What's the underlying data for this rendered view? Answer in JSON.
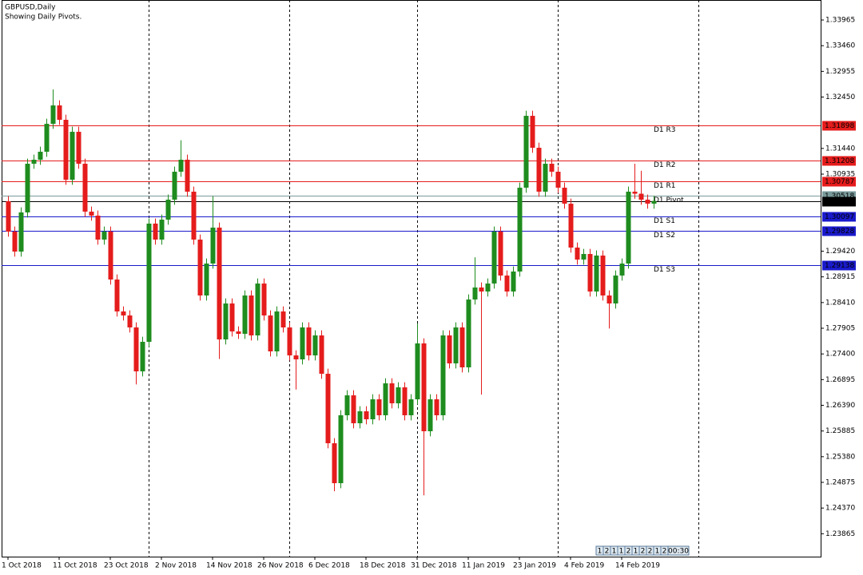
{
  "chart_data": {
    "type": "candlestick",
    "title": "GBPUSD,Daily",
    "subtitle": "Showing Daily Pivots.",
    "up_color": "#1e8c1e",
    "down_color": "#e51c1c",
    "ylim": [
      1.23415,
      1.34358
    ],
    "xlim": [
      -1,
      127.125
    ],
    "yticks": [
      1.33965,
      {
        "value": 1.3346,
        "label": "1.33460"
      },
      1.32955,
      {
        "value": 1.3245,
        "label": "1.32450"
      },
      {
        "value": 1.3144,
        "label": "1.31440"
      },
      1.30935,
      {
        "value": 1.2942,
        "label": "1.29420"
      },
      1.28915,
      {
        "value": 1.2841,
        "label": "1.28410"
      },
      1.27905,
      {
        "value": 1.274,
        "label": "1.27400"
      },
      1.26895,
      {
        "value": 1.2639,
        "label": "1.26390"
      },
      1.25885,
      {
        "value": 1.2538,
        "label": "1.25380"
      },
      1.24875,
      {
        "value": 1.2437,
        "label": "1.24370"
      },
      1.23865
    ],
    "xticks": [
      {
        "value": 0,
        "label": "1 Oct 2018"
      },
      {
        "value": 8,
        "label": "11 Oct 2018"
      },
      {
        "value": 16,
        "label": "23 Oct 2018"
      },
      {
        "value": 24,
        "label": "2 Nov 2018"
      },
      {
        "value": 32,
        "label": "14 Nov 2018"
      },
      {
        "value": 40,
        "label": "26 Nov 2018"
      },
      {
        "value": 48,
        "label": "6 Dec 2018"
      },
      {
        "value": 56,
        "label": "18 Dec 2018"
      },
      {
        "value": 64,
        "label": "31 Dec 2018"
      },
      {
        "value": 72,
        "label": "11 Jan 2019"
      },
      {
        "value": 80,
        "label": "23 Jan 2019"
      },
      {
        "value": 88,
        "label": "4 Feb 2019"
      },
      {
        "value": 96,
        "label": "14 Feb 2019"
      }
    ],
    "period_separators": [
      22,
      44,
      64,
      86,
      108
    ],
    "levels": [
      {
        "name": "D1 R3",
        "value": 1.31898,
        "color": "#e51c1c"
      },
      {
        "name": "D1 R2",
        "value": 1.31208,
        "color": "#e51c1c"
      },
      {
        "name": "D1 R1",
        "value": 1.30787,
        "color": "#e51c1c"
      },
      {
        "name": "D1 Pivot",
        "value": 1.30518,
        "color": "#7a9a9a"
      },
      {
        "name": "D1 S1",
        "value": 1.30097,
        "color": "#1a1acc"
      },
      {
        "name": "D1 S2",
        "value": 1.29828,
        "color": "#1a1acc"
      },
      {
        "name": "D1 S3",
        "value": 1.29138,
        "color": "#1a1acc"
      }
    ],
    "current_price": 1.30408,
    "timer": [
      "1",
      "2",
      "1",
      "1",
      "2",
      "1",
      "2",
      "2",
      "1",
      "2",
      "00:30"
    ],
    "ohlc": [
      [
        1.30402,
        1.30502,
        1.29705,
        1.29805
      ],
      [
        1.29805,
        1.29905,
        1.29312,
        1.29412
      ],
      [
        1.29412,
        1.30282,
        1.29312,
        1.30182
      ],
      [
        1.30182,
        1.31239,
        1.30082,
        1.31139
      ],
      [
        1.31139,
        1.31318,
        1.31039,
        1.31218
      ],
      [
        1.31218,
        1.31475,
        1.31118,
        1.31375
      ],
      [
        1.31375,
        1.32024,
        1.31275,
        1.31924
      ],
      [
        1.31924,
        1.326,
        1.31824,
        1.32286
      ],
      [
        1.32286,
        1.32386,
        1.31903,
        1.32003
      ],
      [
        1.32003,
        1.32103,
        1.30725,
        1.30825
      ],
      [
        1.30825,
        1.31867,
        1.30725,
        1.31767
      ],
      [
        1.31767,
        1.31867,
        1.31039,
        1.31139
      ],
      [
        1.31139,
        1.31239,
        1.30097,
        1.30197
      ],
      [
        1.30197,
        1.30297,
        1.30019,
        1.30119
      ],
      [
        1.30119,
        1.30219,
        1.29548,
        1.29648
      ],
      [
        1.29648,
        1.29905,
        1.29548,
        1.29805
      ],
      [
        1.29805,
        1.29905,
        1.28763,
        1.28863
      ],
      [
        1.28863,
        1.28963,
        1.28135,
        1.28235
      ],
      [
        1.28235,
        1.28335,
        1.28056,
        1.28156
      ],
      [
        1.28156,
        1.28256,
        1.27821,
        1.27921
      ],
      [
        1.27921,
        1.28021,
        1.268,
        1.27057
      ],
      [
        1.27057,
        1.27738,
        1.26957,
        1.27638
      ],
      [
        1.27638,
        1.30062,
        1.27538,
        1.29962
      ],
      [
        1.29962,
        1.30062,
        1.29548,
        1.29648
      ],
      [
        1.29648,
        1.3014,
        1.29548,
        1.3004
      ],
      [
        1.3004,
        1.30533,
        1.2994,
        1.30433
      ],
      [
        1.30433,
        1.31082,
        1.30333,
        1.30982
      ],
      [
        1.30982,
        1.316,
        1.30882,
        1.31218
      ],
      [
        1.31218,
        1.31318,
        1.3049,
        1.3059
      ],
      [
        1.3059,
        1.3069,
        1.29548,
        1.29648
      ],
      [
        1.29648,
        1.29748,
        1.28449,
        1.28549
      ],
      [
        1.28549,
        1.29277,
        1.28449,
        1.29177
      ],
      [
        1.29177,
        1.305,
        1.29077,
        1.29883
      ],
      [
        1.29883,
        1.29983,
        1.273,
        1.27685
      ],
      [
        1.27685,
        1.28492,
        1.27585,
        1.28392
      ],
      [
        1.28392,
        1.28492,
        1.27742,
        1.27842
      ],
      [
        1.27842,
        1.27942,
        1.27695,
        1.27795
      ],
      [
        1.27795,
        1.28649,
        1.27695,
        1.28549
      ],
      [
        1.28549,
        1.28649,
        1.27664,
        1.27764
      ],
      [
        1.27764,
        1.28884,
        1.27664,
        1.28784
      ],
      [
        1.28784,
        1.28884,
        1.28056,
        1.28156
      ],
      [
        1.28156,
        1.28256,
        1.2735,
        1.2745
      ],
      [
        1.2745,
        1.28335,
        1.2735,
        1.28235
      ],
      [
        1.28235,
        1.28335,
        1.27821,
        1.27921
      ],
      [
        1.27921,
        1.28021,
        1.27271,
        1.27371
      ],
      [
        1.27371,
        1.27471,
        1.267,
        1.27293
      ],
      [
        1.27293,
        1.28021,
        1.27193,
        1.27921
      ],
      [
        1.27921,
        1.28021,
        1.27271,
        1.27371
      ],
      [
        1.27371,
        1.27864,
        1.27271,
        1.27764
      ],
      [
        1.27764,
        1.27864,
        1.2691,
        1.2701
      ],
      [
        1.2701,
        1.2711,
        1.25544,
        1.25644
      ],
      [
        1.25644,
        1.25744,
        1.247,
        1.24859
      ],
      [
        1.24859,
        1.26294,
        1.24759,
        1.26194
      ],
      [
        1.26194,
        1.26686,
        1.26094,
        1.26586
      ],
      [
        1.26586,
        1.26686,
        1.25937,
        1.26037
      ],
      [
        1.26037,
        1.26372,
        1.25937,
        1.26272
      ],
      [
        1.26272,
        1.26372,
        1.26015,
        1.26115
      ],
      [
        1.26115,
        1.26608,
        1.26015,
        1.26508
      ],
      [
        1.26508,
        1.26608,
        1.26094,
        1.26194
      ],
      [
        1.26194,
        1.26922,
        1.26094,
        1.26822
      ],
      [
        1.26822,
        1.26922,
        1.26329,
        1.26429
      ],
      [
        1.26429,
        1.26843,
        1.26329,
        1.26743
      ],
      [
        1.26743,
        1.26843,
        1.26094,
        1.26194
      ],
      [
        1.26194,
        1.26608,
        1.26094,
        1.26508
      ],
      [
        1.26508,
        1.28,
        1.26408,
        1.27607
      ],
      [
        1.27607,
        1.27707,
        1.2462,
        1.2588
      ],
      [
        1.2588,
        1.26608,
        1.2578,
        1.26508
      ],
      [
        1.26508,
        1.26608,
        1.26094,
        1.26194
      ],
      [
        1.26194,
        1.27864,
        1.26094,
        1.27764
      ],
      [
        1.27764,
        1.27864,
        1.27114,
        1.27214
      ],
      [
        1.27214,
        1.28021,
        1.27114,
        1.27921
      ],
      [
        1.27921,
        1.28021,
        1.27036,
        1.27136
      ],
      [
        1.27136,
        1.2857,
        1.27036,
        1.2847
      ],
      [
        1.2847,
        1.293,
        1.2837,
        1.28706
      ],
      [
        1.28706,
        1.28806,
        1.266,
        1.28627
      ],
      [
        1.28627,
        1.28884,
        1.28527,
        1.28784
      ],
      [
        1.28784,
        1.29905,
        1.28684,
        1.29805
      ],
      [
        1.29805,
        1.29905,
        1.28841,
        1.28941
      ],
      [
        1.28941,
        1.29041,
        1.28527,
        1.28627
      ],
      [
        1.28627,
        1.2912,
        1.28527,
        1.2902
      ],
      [
        1.2902,
        1.30768,
        1.2892,
        1.30668
      ],
      [
        1.30668,
        1.32181,
        1.30568,
        1.32081
      ],
      [
        1.32081,
        1.32181,
        1.31353,
        1.31453
      ],
      [
        1.31453,
        1.31553,
        1.3049,
        1.3059
      ],
      [
        1.3059,
        1.31239,
        1.3049,
        1.31139
      ],
      [
        1.31139,
        1.31239,
        1.30882,
        1.30982
      ],
      [
        1.30982,
        1.31082,
        1.30568,
        1.30668
      ],
      [
        1.30668,
        1.30768,
        1.30254,
        1.30354
      ],
      [
        1.30354,
        1.30454,
        1.29391,
        1.29491
      ],
      [
        1.29491,
        1.29591,
        1.29155,
        1.29255
      ],
      [
        1.29255,
        1.29465,
        1.29155,
        1.29365
      ],
      [
        1.29365,
        1.29465,
        1.28527,
        1.28627
      ],
      [
        1.28627,
        1.29434,
        1.28527,
        1.29334
      ],
      [
        1.29334,
        1.29434,
        1.28449,
        1.28549
      ],
      [
        1.28549,
        1.28649,
        1.279,
        1.28392
      ],
      [
        1.28392,
        1.29041,
        1.28292,
        1.28941
      ],
      [
        1.28941,
        1.29277,
        1.28841,
        1.29177
      ],
      [
        1.29177,
        1.3069,
        1.29077,
        1.3059
      ],
      [
        1.3059,
        1.3114,
        1.3045,
        1.3055
      ],
      [
        1.3055,
        1.31,
        1.30333,
        1.30433
      ],
      [
        1.30433,
        1.30533,
        1.30254,
        1.30354
      ],
      [
        1.30354,
        1.30508,
        1.30254,
        1.30408
      ]
    ]
  }
}
